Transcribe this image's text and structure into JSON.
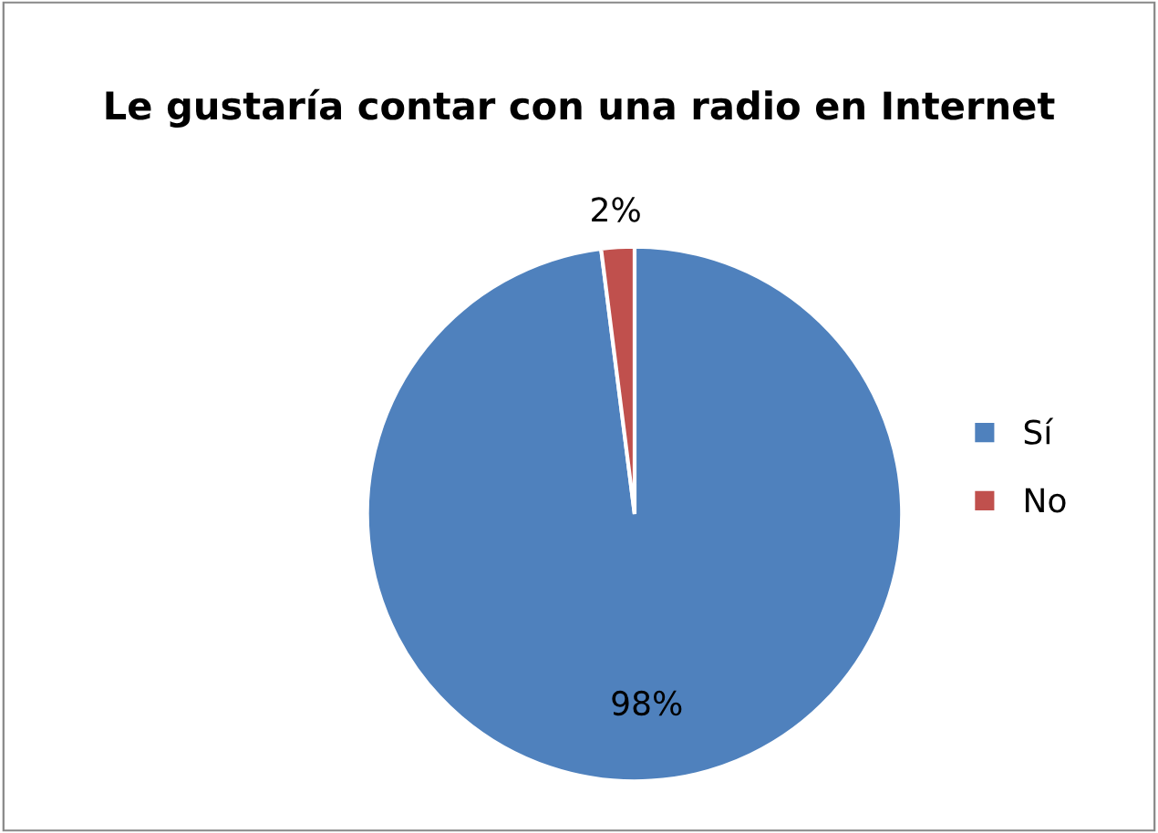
{
  "chart_data": {
    "type": "pie",
    "title": "Le gustaría contar con una radio en Internet",
    "categories": [
      "Sí",
      "No"
    ],
    "values": [
      98,
      2
    ],
    "colors": [
      "#4f81bd",
      "#c0504d"
    ],
    "value_labels": [
      "98%",
      "2%"
    ],
    "legend": "right"
  }
}
